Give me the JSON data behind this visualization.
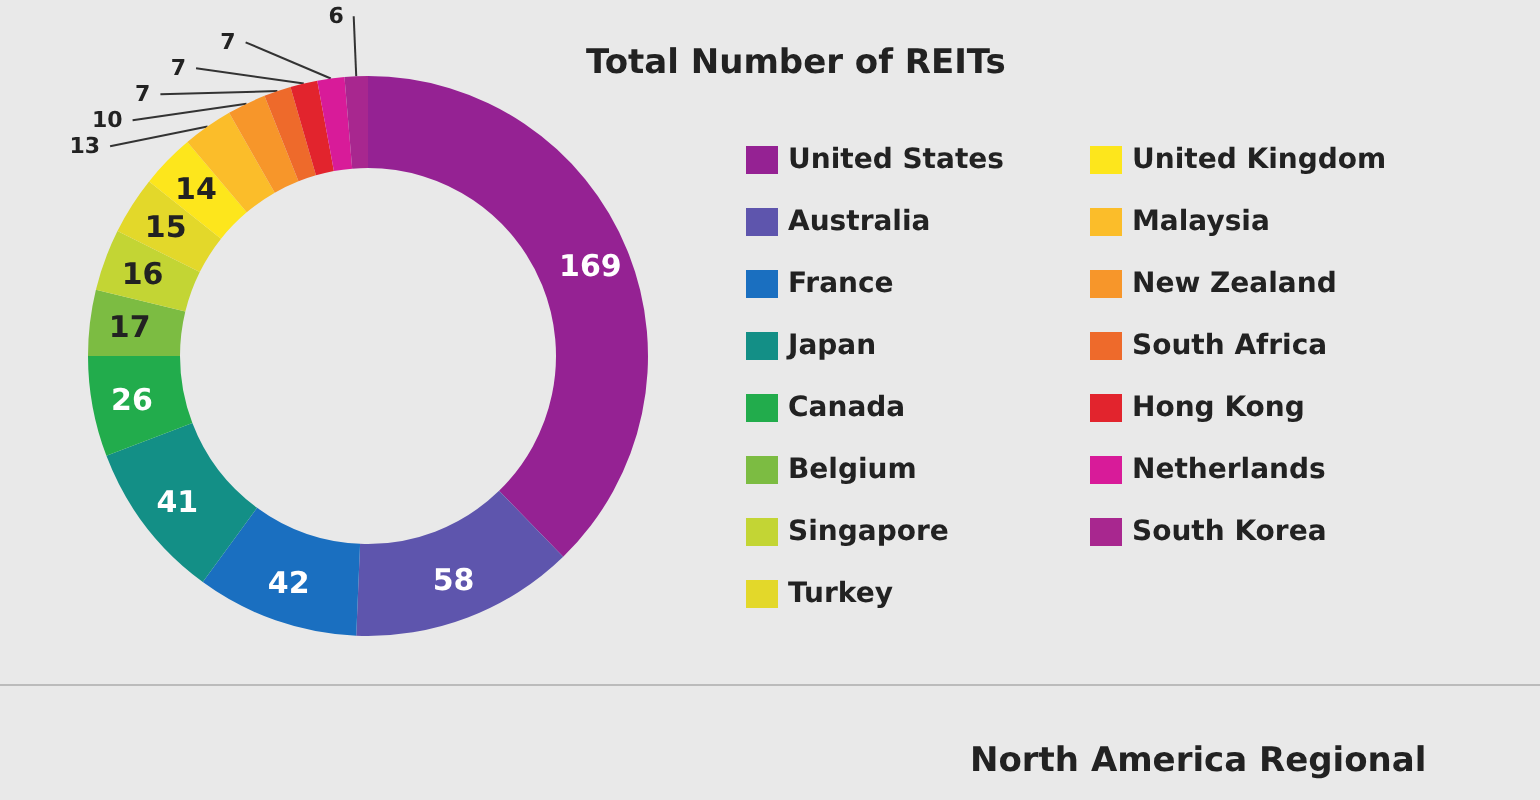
{
  "chart_data": {
    "type": "donut",
    "title": "Total Number of REITs",
    "categories": [
      "United States",
      "Australia",
      "France",
      "Japan",
      "Canada",
      "Belgium",
      "Singapore",
      "Turkey",
      "United Kingdom",
      "Malaysia",
      "New Zealand",
      "South Africa",
      "Hong Kong",
      "Netherlands",
      "South Korea"
    ],
    "values": [
      169,
      58,
      42,
      41,
      26,
      17,
      16,
      15,
      14,
      13,
      10,
      7,
      7,
      7,
      6
    ],
    "colors": [
      "#952293",
      "#5e55ad",
      "#1a6fc0",
      "#138f86",
      "#22ac4c",
      "#7cbc42",
      "#c3d534",
      "#e3d82a",
      "#fde61c",
      "#fbbd2a",
      "#f7962a",
      "#ee6a2b",
      "#e2242d",
      "#d81b99",
      "#a8278f"
    ],
    "data_labels": true,
    "legend": "right",
    "annotations": [
      "North America Regional"
    ]
  }
}
